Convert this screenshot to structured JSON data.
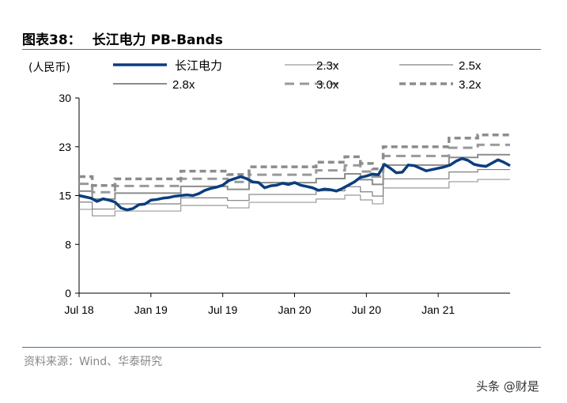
{
  "header": {
    "figure_no": "图表38：",
    "title": "长江电力 PB-Bands"
  },
  "unit": "(人民币)",
  "source": "资料来源：Wind、华泰研究",
  "watermark": "头条 @财是",
  "chart_data": {
    "type": "line",
    "title": "长江电力 PB-Bands",
    "ylabel": "(人民币)",
    "ylim": [
      0,
      30
    ],
    "yticks": [
      0,
      7.5,
      15,
      22.5,
      30
    ],
    "ytick_labels": [
      "0",
      "8",
      "15",
      "23",
      "30"
    ],
    "xlim_months_since_jul18": [
      0,
      36
    ],
    "xticks": [
      {
        "m": 0,
        "label": "Jul 18"
      },
      {
        "m": 6,
        "label": "Jan 19"
      },
      {
        "m": 12,
        "label": "Jul 19"
      },
      {
        "m": 18,
        "label": "Jan 20"
      },
      {
        "m": 24,
        "label": "Jul 20"
      },
      {
        "m": 30,
        "label": "Jan 21"
      }
    ],
    "legend_position": "top",
    "bvps_steps": [
      [
        0,
        5.6
      ],
      [
        1.1,
        5.17
      ],
      [
        3.0,
        5.49
      ],
      [
        8.5,
        5.86
      ],
      [
        12.4,
        5.7
      ],
      [
        14.2,
        6.07
      ],
      [
        19.8,
        6.29
      ],
      [
        22.2,
        6.55
      ],
      [
        23.5,
        6.23
      ],
      [
        24.5,
        5.97
      ],
      [
        25.4,
        7.03
      ],
      [
        30.9,
        7.45
      ],
      [
        33.3,
        7.6
      ],
      [
        36,
        7.6
      ]
    ],
    "series": [
      {
        "name": "长江电力",
        "color": "#0b3d7e",
        "style": "price",
        "points": [
          [
            0,
            15.0
          ],
          [
            0.5,
            14.8
          ],
          [
            1,
            14.6
          ],
          [
            1.5,
            14.1
          ],
          [
            2,
            14.5
          ],
          [
            2.5,
            14.3
          ],
          [
            3,
            14.0
          ],
          [
            3.5,
            13.1
          ],
          [
            4,
            12.8
          ],
          [
            4.5,
            13.0
          ],
          [
            5,
            13.6
          ],
          [
            5.5,
            13.7
          ],
          [
            6,
            14.3
          ],
          [
            6.5,
            14.4
          ],
          [
            7,
            14.6
          ],
          [
            7.5,
            14.7
          ],
          [
            8,
            14.9
          ],
          [
            8.5,
            15.0
          ],
          [
            9,
            15.1
          ],
          [
            9.5,
            15.0
          ],
          [
            10,
            15.3
          ],
          [
            10.5,
            15.8
          ],
          [
            11,
            16.1
          ],
          [
            11.5,
            16.3
          ],
          [
            12,
            16.6
          ],
          [
            12.5,
            17.3
          ],
          [
            13,
            17.6
          ],
          [
            13.5,
            17.9
          ],
          [
            14,
            17.6
          ],
          [
            14.5,
            17.1
          ],
          [
            15,
            17.0
          ],
          [
            15.5,
            16.2
          ],
          [
            16,
            16.5
          ],
          [
            16.5,
            16.6
          ],
          [
            17,
            16.9
          ],
          [
            17.5,
            16.7
          ],
          [
            18,
            17.0
          ],
          [
            18.5,
            16.6
          ],
          [
            19,
            16.4
          ],
          [
            19.5,
            16.2
          ],
          [
            20,
            15.8
          ],
          [
            20.5,
            16.0
          ],
          [
            21,
            15.9
          ],
          [
            21.5,
            15.7
          ],
          [
            22,
            16.1
          ],
          [
            22.5,
            16.6
          ],
          [
            23,
            17.1
          ],
          [
            23.5,
            17.8
          ],
          [
            24,
            18.0
          ],
          [
            24.5,
            18.3
          ],
          [
            25,
            18.2
          ],
          [
            25.5,
            19.8
          ],
          [
            26,
            19.2
          ],
          [
            26.5,
            18.5
          ],
          [
            27,
            18.6
          ],
          [
            27.5,
            19.7
          ],
          [
            28,
            19.6
          ],
          [
            28.5,
            19.2
          ],
          [
            29,
            18.8
          ],
          [
            29.5,
            19.0
          ],
          [
            30,
            19.2
          ],
          [
            30.5,
            19.4
          ],
          [
            31,
            19.7
          ],
          [
            31.5,
            20.3
          ],
          [
            32,
            20.7
          ],
          [
            32.5,
            20.4
          ],
          [
            33,
            19.8
          ],
          [
            33.5,
            19.6
          ],
          [
            34,
            19.5
          ],
          [
            34.5,
            20.0
          ],
          [
            35,
            20.5
          ],
          [
            35.5,
            20.1
          ],
          [
            36,
            19.6
          ]
        ]
      },
      {
        "name": "2.3x",
        "multiple": 2.3,
        "color": "#999999",
        "style": "thin"
      },
      {
        "name": "2.5x",
        "multiple": 2.5,
        "color": "#7f7f7f",
        "style": "thin"
      },
      {
        "name": "2.8x",
        "multiple": 2.8,
        "color": "#8c8c8c",
        "style": "medium"
      },
      {
        "name": "3.0x",
        "multiple": 3.0,
        "color": "#999999",
        "style": "dash"
      },
      {
        "name": "3.2x",
        "multiple": 3.2,
        "color": "#8c8c8c",
        "style": "dash-bold"
      }
    ]
  }
}
